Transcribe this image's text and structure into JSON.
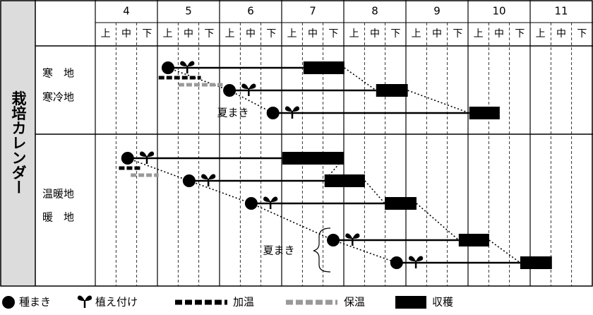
{
  "title": "栽培カレンダー",
  "months": [
    4,
    5,
    6,
    7,
    8,
    9,
    10,
    11
  ],
  "periods": [
    "上",
    "中",
    "下"
  ],
  "regions": [
    {
      "labels": [
        "寒　地",
        "寒冷地"
      ],
      "note": "夏まき",
      "rows": [
        {
          "sow": 5.17,
          "plant": 5.48,
          "harvest": [
            7.35,
            8.01
          ],
          "heat": [
            5.02,
            5.7
          ],
          "keep": [
            5.34,
            6.05
          ]
        },
        {
          "sow": 6.16,
          "plant": 6.47,
          "harvest": [
            8.52,
            9.03
          ]
        },
        {
          "sow": 6.86,
          "plant": 7.17,
          "harvest": [
            10.02,
            10.51
          ]
        }
      ]
    },
    {
      "labels": [
        "温暖地",
        "暖　地"
      ],
      "note": "夏まき",
      "rows": [
        {
          "sow": 4.52,
          "plant": 4.83,
          "harvest": [
            7.01,
            8.0
          ],
          "heat": [
            4.38,
            4.74
          ],
          "keep": [
            4.57,
            5.02
          ]
        },
        {
          "sow": 5.51,
          "plant": 5.82,
          "harvest": [
            7.69,
            8.34
          ]
        },
        {
          "sow": 6.51,
          "plant": 6.82,
          "harvest": [
            8.66,
            9.17
          ]
        },
        {
          "sow": 7.83,
          "plant": 8.14,
          "harvest": [
            9.85,
            10.34
          ]
        },
        {
          "sow": 8.85,
          "plant": 9.16,
          "harvest": [
            10.84,
            11.35
          ]
        }
      ]
    }
  ],
  "legend": {
    "sow": "種まき",
    "plant": "植え付け",
    "heat": "加温",
    "keep": "保温",
    "harvest": "収穫"
  }
}
